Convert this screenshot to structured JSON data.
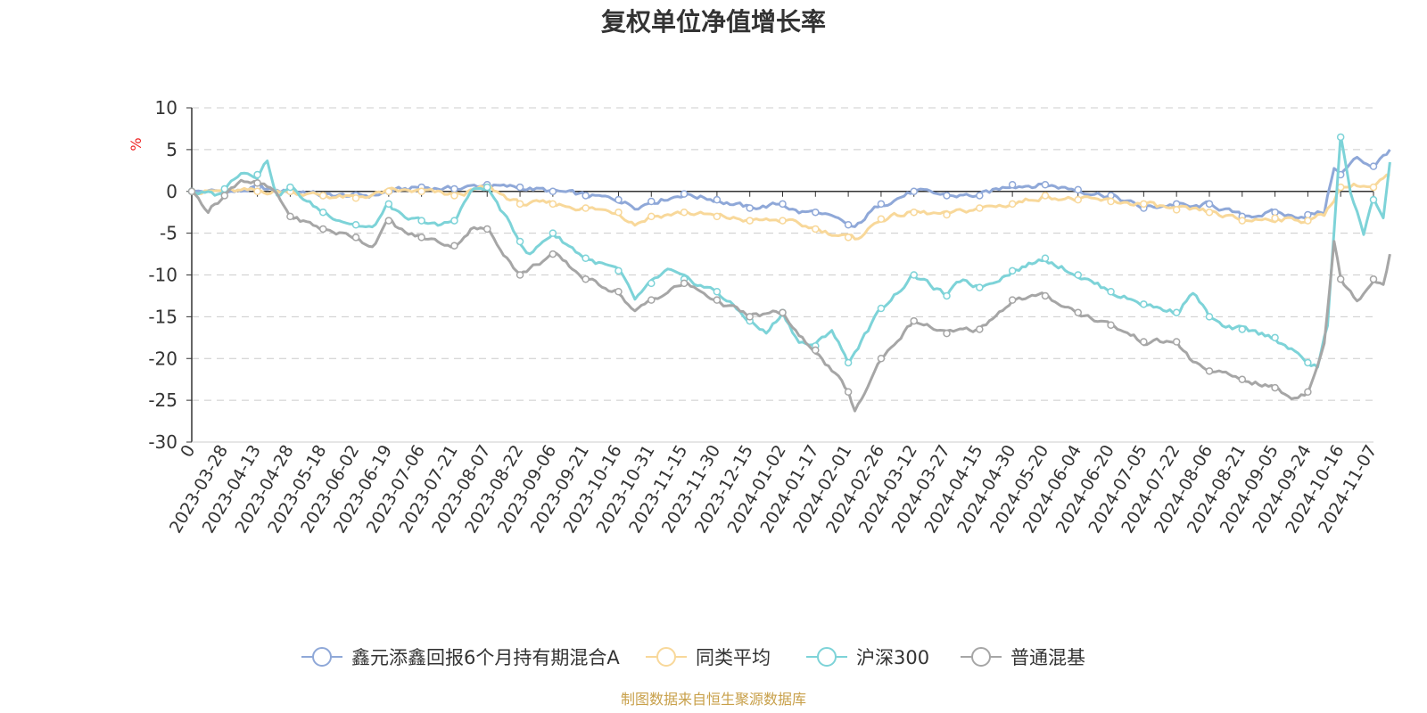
{
  "chart_data": {
    "type": "line",
    "title": "复权单位净值增长率",
    "ylabel": "%",
    "ylim": [
      -30,
      10
    ],
    "yticks": [
      10,
      5,
      0,
      -5,
      -10,
      -15,
      -20,
      -25,
      -30
    ],
    "categories": [
      "0",
      "2023-03-28",
      "2023-04-13",
      "2023-04-28",
      "2023-05-18",
      "2023-06-02",
      "2023-06-19",
      "2023-07-06",
      "2023-07-21",
      "2023-08-07",
      "2023-08-22",
      "2023-09-06",
      "2023-09-21",
      "2023-10-16",
      "2023-10-31",
      "2023-11-15",
      "2023-11-30",
      "2023-12-15",
      "2024-01-02",
      "2024-01-17",
      "2024-02-01",
      "2024-02-26",
      "2024-03-12",
      "2024-03-27",
      "2024-04-15",
      "2024-04-30",
      "2024-05-20",
      "2024-06-04",
      "2024-06-20",
      "2024-07-05",
      "2024-07-22",
      "2024-08-06",
      "2024-08-21",
      "2024-09-05",
      "2024-09-24",
      "2024-10-16",
      "2024-11-07"
    ],
    "series": [
      {
        "name": "鑫元添鑫回报6个月持有期混合A",
        "color": "#8fa8d8",
        "anchors": [
          [
            0,
            0
          ],
          [
            0.5,
            0
          ],
          [
            1,
            0
          ],
          [
            1.5,
            0
          ],
          [
            2,
            0.5
          ],
          [
            2.5,
            0
          ],
          [
            3,
            0
          ],
          [
            3.5,
            0
          ],
          [
            4,
            -0.5
          ],
          [
            5,
            -0.5
          ],
          [
            5.5,
            -0.5
          ],
          [
            6,
            0
          ],
          [
            7,
            0.5
          ],
          [
            8,
            0.3
          ],
          [
            9,
            0.8
          ],
          [
            9.5,
            0.5
          ],
          [
            10,
            0.5
          ],
          [
            11,
            0
          ],
          [
            12,
            -0.5
          ],
          [
            13,
            -1
          ],
          [
            13.5,
            -1.8
          ],
          [
            14,
            -1.2
          ],
          [
            15,
            -0.3
          ],
          [
            16,
            -1
          ],
          [
            17,
            -2
          ],
          [
            18,
            -1.5
          ],
          [
            18.5,
            -2.5
          ],
          [
            19,
            -2.5
          ],
          [
            20,
            -4
          ],
          [
            20.2,
            -4.5
          ],
          [
            20.6,
            -2.8
          ],
          [
            21,
            -1.5
          ],
          [
            22,
            0
          ],
          [
            23,
            -0.5
          ],
          [
            24,
            -0.5
          ],
          [
            25,
            0.8
          ],
          [
            26,
            0.8
          ],
          [
            27,
            0.2
          ],
          [
            28,
            -0.5
          ],
          [
            29,
            -2
          ],
          [
            30,
            -1.5
          ],
          [
            30.5,
            -2
          ],
          [
            31,
            -1.5
          ],
          [
            32,
            -3
          ],
          [
            33,
            -2.5
          ],
          [
            33.5,
            -3
          ],
          [
            34,
            -2.8
          ],
          [
            34.5,
            -2.5
          ],
          [
            34.8,
            3
          ],
          [
            35,
            2
          ],
          [
            35.5,
            4
          ],
          [
            36,
            3
          ],
          [
            36.5,
            5
          ]
        ],
        "markers": [
          0,
          1,
          2,
          3,
          4,
          5,
          6,
          7,
          8,
          9,
          10,
          11,
          12,
          13,
          14,
          15,
          16,
          17,
          18,
          19,
          20,
          21,
          22,
          23,
          24,
          25,
          26,
          27,
          28,
          29,
          30,
          31,
          32,
          33,
          34,
          35,
          36
        ]
      },
      {
        "name": "同类平均",
        "color": "#f8d89a",
        "anchors": [
          [
            0,
            0
          ],
          [
            1,
            0
          ],
          [
            2,
            0
          ],
          [
            3,
            0
          ],
          [
            4,
            -0.5
          ],
          [
            5,
            -0.8
          ],
          [
            6,
            0
          ],
          [
            7,
            0
          ],
          [
            8,
            -0.5
          ],
          [
            9,
            0.5
          ],
          [
            10,
            -1.5
          ],
          [
            11,
            -1.5
          ],
          [
            12,
            -2
          ],
          [
            13,
            -2.5
          ],
          [
            13.5,
            -3.8
          ],
          [
            14,
            -3
          ],
          [
            15,
            -2.5
          ],
          [
            16,
            -3
          ],
          [
            17,
            -3.5
          ],
          [
            18,
            -3.5
          ],
          [
            19,
            -4.5
          ],
          [
            20,
            -5.5
          ],
          [
            20.2,
            -5.8
          ],
          [
            21,
            -3.3
          ],
          [
            22,
            -2.5
          ],
          [
            23,
            -2.8
          ],
          [
            24,
            -2
          ],
          [
            25,
            -1.5
          ],
          [
            26,
            -0.5
          ],
          [
            27,
            -1
          ],
          [
            28,
            -1.2
          ],
          [
            29,
            -1.5
          ],
          [
            30,
            -2.2
          ],
          [
            31,
            -2.5
          ],
          [
            32,
            -3.5
          ],
          [
            33,
            -3.2
          ],
          [
            34,
            -3.5
          ],
          [
            34.5,
            -2.8
          ],
          [
            35,
            0.5
          ],
          [
            35.5,
            0.8
          ],
          [
            36,
            0.5
          ],
          [
            36.5,
            2
          ]
        ],
        "markers": [
          0,
          1,
          2,
          3,
          4,
          5,
          6,
          7,
          8,
          9,
          10,
          11,
          12,
          13,
          14,
          15,
          16,
          17,
          18,
          19,
          20,
          21,
          22,
          23,
          24,
          25,
          26,
          27,
          28,
          29,
          30,
          31,
          32,
          33,
          34,
          35,
          36
        ]
      },
      {
        "name": "沪深300",
        "color": "#7dd3d8",
        "anchors": [
          [
            0,
            0
          ],
          [
            0.8,
            -0.5
          ],
          [
            1,
            0.3
          ],
          [
            1.5,
            2.5
          ],
          [
            2,
            2
          ],
          [
            2.3,
            3.8
          ],
          [
            2.6,
            -0.5
          ],
          [
            3,
            0.5
          ],
          [
            3.5,
            -1.2
          ],
          [
            4,
            -2.5
          ],
          [
            5,
            -4
          ],
          [
            5.5,
            -4.5
          ],
          [
            6,
            -1.5
          ],
          [
            6.5,
            -3.5
          ],
          [
            7,
            -3.5
          ],
          [
            7.5,
            -4.2
          ],
          [
            8,
            -3.5
          ],
          [
            8.5,
            0
          ],
          [
            9,
            0.5
          ],
          [
            10,
            -6
          ],
          [
            10.3,
            -7.5
          ],
          [
            11,
            -5
          ],
          [
            12,
            -8
          ],
          [
            13,
            -9.5
          ],
          [
            13.5,
            -13
          ],
          [
            14,
            -11
          ],
          [
            14.5,
            -9.5
          ],
          [
            15,
            -10.5
          ],
          [
            16,
            -12
          ],
          [
            17,
            -15.5
          ],
          [
            17.5,
            -17
          ],
          [
            18,
            -14.5
          ],
          [
            18.5,
            -18
          ],
          [
            19,
            -18.5
          ],
          [
            19.5,
            -16.5
          ],
          [
            20,
            -20.5
          ],
          [
            21,
            -14
          ],
          [
            22,
            -10
          ],
          [
            23,
            -12.5
          ],
          [
            23.5,
            -10.5
          ],
          [
            24,
            -11.5
          ],
          [
            25,
            -9.5
          ],
          [
            26,
            -8
          ],
          [
            27,
            -10
          ],
          [
            28,
            -12
          ],
          [
            29,
            -13.5
          ],
          [
            30,
            -14.5
          ],
          [
            30.5,
            -12
          ],
          [
            31,
            -15
          ],
          [
            31.5,
            -16.5
          ],
          [
            32,
            -16.5
          ],
          [
            33,
            -17.5
          ],
          [
            34,
            -20.5
          ],
          [
            34.3,
            -21
          ],
          [
            34.6,
            -16
          ],
          [
            35,
            6.5
          ],
          [
            35.3,
            0
          ],
          [
            35.7,
            -5
          ],
          [
            36,
            -1
          ],
          [
            36.3,
            -3
          ],
          [
            36.5,
            3.5
          ]
        ],
        "markers": [
          0,
          1,
          2,
          3,
          4,
          5,
          6,
          7,
          8,
          9,
          10,
          11,
          12,
          13,
          14,
          15,
          16,
          17,
          18,
          19,
          20,
          21,
          22,
          23,
          24,
          25,
          26,
          27,
          28,
          29,
          30,
          31,
          32,
          33,
          34,
          35,
          36
        ]
      },
      {
        "name": "普通混基",
        "color": "#a6a6a6",
        "anchors": [
          [
            0,
            0
          ],
          [
            0.5,
            -2.2
          ],
          [
            1,
            -0.5
          ],
          [
            1.5,
            1.5
          ],
          [
            2,
            1
          ],
          [
            2.5,
            0
          ],
          [
            3,
            -3
          ],
          [
            4,
            -4.5
          ],
          [
            5,
            -5.5
          ],
          [
            5.5,
            -6.5
          ],
          [
            6,
            -3.5
          ],
          [
            6.5,
            -5
          ],
          [
            7,
            -5.5
          ],
          [
            8,
            -6.5
          ],
          [
            8.5,
            -4.5
          ],
          [
            9,
            -4.5
          ],
          [
            10,
            -10
          ],
          [
            11,
            -7.5
          ],
          [
            12,
            -10.5
          ],
          [
            13,
            -12
          ],
          [
            13.5,
            -14.5
          ],
          [
            14,
            -13
          ],
          [
            15,
            -11
          ],
          [
            16,
            -13
          ],
          [
            17,
            -15
          ],
          [
            18,
            -14.5
          ],
          [
            18.5,
            -17.5
          ],
          [
            19,
            -19
          ],
          [
            20,
            -24
          ],
          [
            20.2,
            -26.5
          ],
          [
            21,
            -20
          ],
          [
            22,
            -15.5
          ],
          [
            23,
            -17
          ],
          [
            24,
            -16.5
          ],
          [
            25,
            -13
          ],
          [
            26,
            -12.5
          ],
          [
            27,
            -14.5
          ],
          [
            28,
            -16
          ],
          [
            29,
            -18
          ],
          [
            30,
            -18
          ],
          [
            30.5,
            -20.5
          ],
          [
            31,
            -21.5
          ],
          [
            32,
            -22.5
          ],
          [
            33,
            -23.5
          ],
          [
            33.5,
            -24.8
          ],
          [
            34,
            -24
          ],
          [
            34.5,
            -18
          ],
          [
            34.8,
            -6
          ],
          [
            35,
            -10.5
          ],
          [
            35.5,
            -13
          ],
          [
            36,
            -10.5
          ],
          [
            36.3,
            -11
          ],
          [
            36.5,
            -7.5
          ]
        ],
        "markers": [
          0,
          1,
          2,
          3,
          4,
          5,
          6,
          7,
          8,
          9,
          10,
          11,
          12,
          13,
          14,
          15,
          16,
          17,
          18,
          19,
          20,
          21,
          22,
          23,
          24,
          25,
          26,
          27,
          28,
          29,
          30,
          31,
          32,
          33,
          34,
          35,
          36
        ]
      }
    ],
    "legend_position": "bottom",
    "grid": true,
    "source_note": "制图数据来自恒生聚源数据库"
  }
}
